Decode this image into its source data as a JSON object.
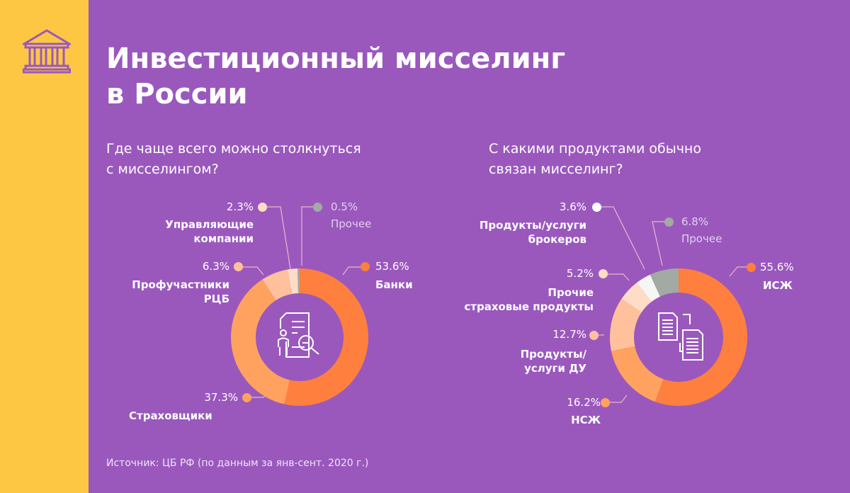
{
  "title_line1": "Инвестиционный мисселинг",
  "title_line2": "в России",
  "logo_icon": "bank-building-icon",
  "colors": {
    "background": "#9a58bd",
    "sidebar": "#fdc744"
  },
  "source": "Источник: ЦБ РФ (по данным за янв-сент. 2020 г.)",
  "chart_data": [
    {
      "type": "pie",
      "donut": true,
      "title": "Где чаще всего можно столкнуться с мисселингом?",
      "title_line1": "Где чаще всего можно столкнуться",
      "title_line2": "с мисселингом?",
      "center_icon": "document-search-person-icon",
      "slices": [
        {
          "label": "Банки",
          "value": 53.6,
          "display": "53.6%",
          "color": "#ff7f3e"
        },
        {
          "label": "Страховщики",
          "value": 37.3,
          "display": "37.3%",
          "color": "#ffa25f"
        },
        {
          "label_line1": "Профучастники",
          "label_line2": "РЦБ",
          "label": "Профучастники РЦБ",
          "value": 6.3,
          "display": "6.3%",
          "color": "#ffc19c"
        },
        {
          "label_line1": "Управляющие",
          "label_line2": "компании",
          "label": "Управляющие компании",
          "value": 2.3,
          "display": "2.3%",
          "color": "#ffdcc6"
        },
        {
          "label": "Прочее",
          "value": 0.5,
          "display": "0.5%",
          "color": "#a3a9a3"
        }
      ]
    },
    {
      "type": "pie",
      "donut": true,
      "title": "С какими продуктами обычно связан мисселинг?",
      "title_line1": "С какими продуктами обычно",
      "title_line2": "связан мисселинг?",
      "center_icon": "documents-exchange-icon",
      "slices": [
        {
          "label": "ИСЖ",
          "value": 55.6,
          "display": "55.6%",
          "color": "#ff7f3e"
        },
        {
          "label": "НСЖ",
          "value": 16.2,
          "display": "16.2%",
          "color": "#ffa25f"
        },
        {
          "label_line1": "Продукты/",
          "label_line2": "услуги ДУ",
          "label": "Продукты/ услуги ДУ",
          "value": 12.7,
          "display": "12.7%",
          "color": "#ffc19c"
        },
        {
          "label_line1": "Прочие",
          "label_line2": "страховые продукты",
          "label": "Прочие страховые продукты",
          "value": 5.2,
          "display": "5.2%",
          "color": "#ffdcc6"
        },
        {
          "label_line1": "Продукты/услуги",
          "label_line2": "брокеров",
          "label": "Продукты/услуги брокеров",
          "value": 3.6,
          "display": "3.6%",
          "color": "#f6f6f4"
        },
        {
          "label": "Прочее",
          "value": 6.8,
          "display": "6.8%",
          "color": "#a3a9a3"
        }
      ]
    }
  ]
}
